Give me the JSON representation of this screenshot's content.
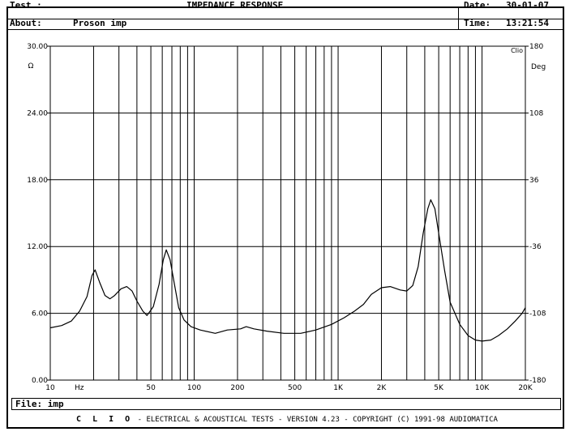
{
  "header": {
    "test_label": "Test :",
    "title": "IMPEDANCE RESPONSE",
    "date_label": "Date:",
    "date_value": "30-01-07",
    "about_label": "About:",
    "about_value": "Proson imp",
    "time_label": "Time:",
    "time_value": "13:21:54"
  },
  "file": {
    "label": "File:",
    "value": "imp"
  },
  "footer": {
    "brand": "C L I O",
    "text": "-  ELECTRICAL & ACOUSTICAL TESTS  -  VERSION 4.23  -  COPYRIGHT (C) 1991-98 AUDIOMATICA"
  },
  "chart_data": {
    "type": "line",
    "xscale": "log",
    "xlim": [
      10,
      20000
    ],
    "ylim": [
      0,
      30
    ],
    "y2lim": [
      -180,
      180
    ],
    "grid": true,
    "corner_mark": "Clio",
    "xlabel_unit": "Hz",
    "ylabel_unit": "Ω",
    "y2label_unit": "Deg",
    "x_tick_labels": [
      {
        "v": 10,
        "t": "10"
      },
      {
        "v": 50,
        "t": "50"
      },
      {
        "v": 100,
        "t": "100"
      },
      {
        "v": 200,
        "t": "200"
      },
      {
        "v": 500,
        "t": "500"
      },
      {
        "v": 1000,
        "t": "1K"
      },
      {
        "v": 2000,
        "t": "2K"
      },
      {
        "v": 5000,
        "t": "5K"
      },
      {
        "v": 10000,
        "t": "10K"
      },
      {
        "v": 20000,
        "t": "20K"
      }
    ],
    "y_tick_labels": [
      {
        "v": 0,
        "t": "0.00"
      },
      {
        "v": 6,
        "t": "6.00"
      },
      {
        "v": 12,
        "t": "12.00"
      },
      {
        "v": 18,
        "t": "18.00"
      },
      {
        "v": 24,
        "t": "24.00"
      },
      {
        "v": 30,
        "t": "30.00"
      }
    ],
    "y2_tick_labels": [
      {
        "v": -180,
        "t": "-180"
      },
      {
        "v": -108,
        "t": "-108"
      },
      {
        "v": -36,
        "t": "-36"
      },
      {
        "v": 36,
        "t": "36"
      },
      {
        "v": 108,
        "t": "108"
      },
      {
        "v": 180,
        "t": "180"
      }
    ],
    "series": [
      {
        "name": "",
        "points": [
          [
            10,
            4.7
          ],
          [
            12,
            4.9
          ],
          [
            14,
            5.3
          ],
          [
            16,
            6.2
          ],
          [
            18,
            7.5
          ],
          [
            19.5,
            9.4
          ],
          [
            20.5,
            9.9
          ],
          [
            22,
            8.8
          ],
          [
            24,
            7.6
          ],
          [
            26,
            7.3
          ],
          [
            28,
            7.6
          ],
          [
            31,
            8.2
          ],
          [
            34,
            8.4
          ],
          [
            37,
            8.0
          ],
          [
            40,
            7.1
          ],
          [
            44,
            6.2
          ],
          [
            47,
            5.8
          ],
          [
            52,
            6.6
          ],
          [
            57,
            8.6
          ],
          [
            61,
            10.8
          ],
          [
            64,
            11.7
          ],
          [
            68,
            10.8
          ],
          [
            72,
            9.0
          ],
          [
            78,
            6.5
          ],
          [
            85,
            5.4
          ],
          [
            95,
            4.8
          ],
          [
            110,
            4.5
          ],
          [
            140,
            4.2
          ],
          [
            170,
            4.5
          ],
          [
            210,
            4.6
          ],
          [
            230,
            4.8
          ],
          [
            260,
            4.6
          ],
          [
            320,
            4.4
          ],
          [
            420,
            4.2
          ],
          [
            550,
            4.2
          ],
          [
            700,
            4.5
          ],
          [
            900,
            5.0
          ],
          [
            1100,
            5.6
          ],
          [
            1300,
            6.2
          ],
          [
            1500,
            6.8
          ],
          [
            1700,
            7.7
          ],
          [
            2000,
            8.3
          ],
          [
            2300,
            8.4
          ],
          [
            2700,
            8.1
          ],
          [
            3000,
            8.0
          ],
          [
            3300,
            8.5
          ],
          [
            3600,
            10.2
          ],
          [
            3900,
            13.2
          ],
          [
            4200,
            15.4
          ],
          [
            4400,
            16.2
          ],
          [
            4700,
            15.4
          ],
          [
            5000,
            13.2
          ],
          [
            5500,
            9.8
          ],
          [
            6000,
            7.0
          ],
          [
            7000,
            5.0
          ],
          [
            8000,
            4.0
          ],
          [
            9000,
            3.6
          ],
          [
            10000,
            3.5
          ],
          [
            11500,
            3.6
          ],
          [
            13000,
            4.0
          ],
          [
            15000,
            4.6
          ],
          [
            17000,
            5.3
          ],
          [
            19000,
            6.0
          ],
          [
            20000,
            6.5
          ]
        ]
      }
    ]
  }
}
